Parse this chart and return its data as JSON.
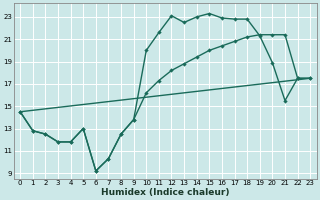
{
  "xlabel": "Humidex (Indice chaleur)",
  "bg_color": "#cce8e8",
  "line_color": "#1a6b5a",
  "grid_color": "#ffffff",
  "xlim": [
    -0.5,
    23.5
  ],
  "ylim": [
    8.5,
    24.2
  ],
  "xticks": [
    0,
    1,
    2,
    3,
    4,
    5,
    6,
    7,
    8,
    9,
    10,
    11,
    12,
    13,
    14,
    15,
    16,
    17,
    18,
    19,
    20,
    21,
    22,
    23
  ],
  "yticks": [
    9,
    11,
    13,
    15,
    17,
    19,
    21,
    23
  ],
  "series1_x": [
    0,
    1,
    2,
    3,
    4,
    5,
    6,
    7,
    8,
    9,
    10,
    11,
    12,
    13,
    14,
    15,
    16,
    17,
    18,
    19,
    20,
    21,
    22,
    23
  ],
  "series1_y": [
    14.5,
    12.8,
    12.5,
    11.8,
    11.8,
    13.0,
    9.2,
    10.3,
    12.5,
    13.8,
    20.0,
    21.6,
    23.1,
    22.5,
    23.0,
    23.3,
    22.9,
    22.8,
    22.8,
    21.3,
    18.9,
    15.5,
    17.5,
    17.5
  ],
  "series2_x": [
    0,
    1,
    2,
    3,
    4,
    5,
    6,
    7,
    8,
    9,
    10,
    11,
    12,
    13,
    14,
    15,
    16,
    17,
    18,
    19,
    20,
    21,
    22,
    23
  ],
  "series2_y": [
    14.5,
    12.8,
    12.5,
    11.8,
    11.8,
    13.0,
    9.2,
    10.3,
    12.5,
    13.8,
    16.2,
    17.3,
    18.2,
    18.8,
    19.4,
    20.0,
    20.4,
    20.8,
    21.2,
    21.4,
    21.4,
    21.4,
    17.5,
    17.5
  ],
  "series3_x": [
    0,
    23
  ],
  "series3_y": [
    14.5,
    17.5
  ],
  "marker_size": 2.2,
  "line_width": 1.0
}
